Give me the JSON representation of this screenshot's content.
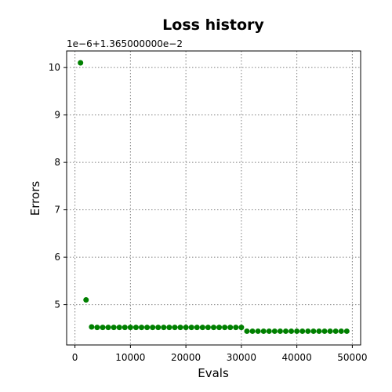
{
  "chart_data": {
    "type": "scatter",
    "title": "Loss history",
    "xlabel": "Evals",
    "ylabel": "Errors",
    "y_offset_text": "1e−6+1.365000000e−2",
    "xlim": [
      -1500,
      51500
    ],
    "ylim": [
      4.15,
      10.35
    ],
    "xticks": [
      0,
      10000,
      20000,
      30000,
      40000,
      50000
    ],
    "xtick_labels": [
      "0",
      "10000",
      "20000",
      "30000",
      "40000",
      "50000"
    ],
    "yticks": [
      5,
      6,
      7,
      8,
      9,
      10
    ],
    "ytick_labels": [
      "5",
      "6",
      "7",
      "8",
      "9",
      "10"
    ],
    "grid": true,
    "marker_color": "#008000",
    "series": [
      {
        "x": [
          1000,
          2000,
          3000,
          4000,
          5000,
          6000,
          7000,
          8000,
          9000,
          10000,
          11000,
          12000,
          13000,
          14000,
          15000,
          16000,
          17000,
          18000,
          19000,
          20000,
          21000,
          22000,
          23000,
          24000,
          25000,
          26000,
          27000,
          28000,
          29000,
          30000,
          31000,
          32000,
          33000,
          34000,
          35000,
          36000,
          37000,
          38000,
          39000,
          40000,
          41000,
          42000,
          43000,
          44000,
          45000,
          46000,
          47000,
          48000,
          49000
        ],
        "y": [
          10.1,
          5.1,
          4.53,
          4.52,
          4.52,
          4.52,
          4.52,
          4.52,
          4.52,
          4.52,
          4.52,
          4.52,
          4.52,
          4.52,
          4.52,
          4.52,
          4.52,
          4.52,
          4.52,
          4.52,
          4.52,
          4.52,
          4.52,
          4.52,
          4.52,
          4.52,
          4.52,
          4.52,
          4.52,
          4.52,
          4.44,
          4.44,
          4.44,
          4.44,
          4.44,
          4.44,
          4.44,
          4.44,
          4.44,
          4.44,
          4.44,
          4.44,
          4.44,
          4.44,
          4.44,
          4.44,
          4.44,
          4.44,
          4.44
        ]
      }
    ]
  }
}
